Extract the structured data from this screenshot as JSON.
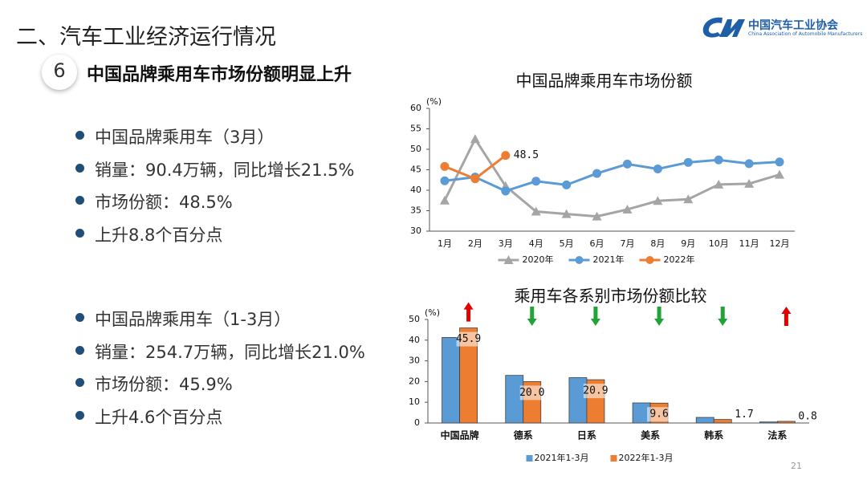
{
  "header": {
    "title": "二、汽车工业经济运行情况",
    "logo_name": "中国汽车工业协会",
    "logo_subtitle": "China Association of Automobile Manufacturers"
  },
  "section": {
    "number": "6",
    "title": "中国品牌乘用车市场份额明显上升"
  },
  "bullets_march": [
    "中国品牌乘用车（3月）",
    "销量：90.4万辆，同比增长21.5%",
    "市场份额：48.5%",
    "上升8.8个百分点"
  ],
  "bullets_q1": [
    "中国品牌乘用车（1-3月）",
    "销量：254.7万辆，同比增长21.0%",
    "市场份额：45.9%",
    "上升4.6个百分点"
  ],
  "page_number": "21",
  "chart_data": [
    {
      "type": "line",
      "title": "中国品牌乘用车市场份额",
      "y_label": "(%)",
      "categories": [
        "1月",
        "2月",
        "3月",
        "4月",
        "5月",
        "6月",
        "7月",
        "8月",
        "9月",
        "10月",
        "11月",
        "12月"
      ],
      "series": [
        {
          "name": "2020年",
          "color": "#a5a5a5",
          "marker": "triangle",
          "values": [
            37.5,
            52.5,
            41,
            34.8,
            34.2,
            33.6,
            35.3,
            37.4,
            37.8,
            41.4,
            41.6,
            43.8
          ]
        },
        {
          "name": "2021年",
          "color": "#5b9bd5",
          "marker": "circle",
          "values": [
            42.3,
            43.2,
            39.8,
            42.2,
            41.3,
            44.1,
            46.4,
            45.2,
            46.8,
            47.4,
            46.5,
            46.9
          ]
        },
        {
          "name": "2022年",
          "color": "#ed7d31",
          "marker": "circle",
          "values": [
            45.8,
            42.8,
            48.5,
            null,
            null,
            null,
            null,
            null,
            null,
            null,
            null,
            null
          ],
          "value_labels": [
            null,
            null,
            "48.5",
            null,
            null,
            null,
            null,
            null,
            null,
            null,
            null,
            null
          ]
        }
      ],
      "ylim": [
        30,
        60
      ],
      "yticks": [
        30,
        35,
        40,
        45,
        50,
        55,
        60
      ],
      "legend": "bottom"
    },
    {
      "type": "bar",
      "title": "乘用车各系别市场份额比较",
      "y_label": "(%)",
      "categories": [
        "中国品牌",
        "德系",
        "日系",
        "美系",
        "韩系",
        "法系"
      ],
      "series": [
        {
          "name": "2021年1-3月",
          "color": "#5b9bd5",
          "values": [
            41.3,
            23.0,
            21.9,
            9.7,
            2.7,
            0.5
          ]
        },
        {
          "name": "2022年1-3月",
          "color": "#ed7d31",
          "values": [
            45.9,
            20.0,
            20.9,
            9.6,
            1.7,
            0.8
          ],
          "value_labels": [
            "45.9",
            "20.0",
            "20.9",
            "9.6",
            "1.7",
            "0.8"
          ]
        }
      ],
      "ylim": [
        0,
        50
      ],
      "yticks": [
        0,
        10,
        20,
        30,
        40,
        50
      ],
      "legend": "bottom"
    }
  ]
}
